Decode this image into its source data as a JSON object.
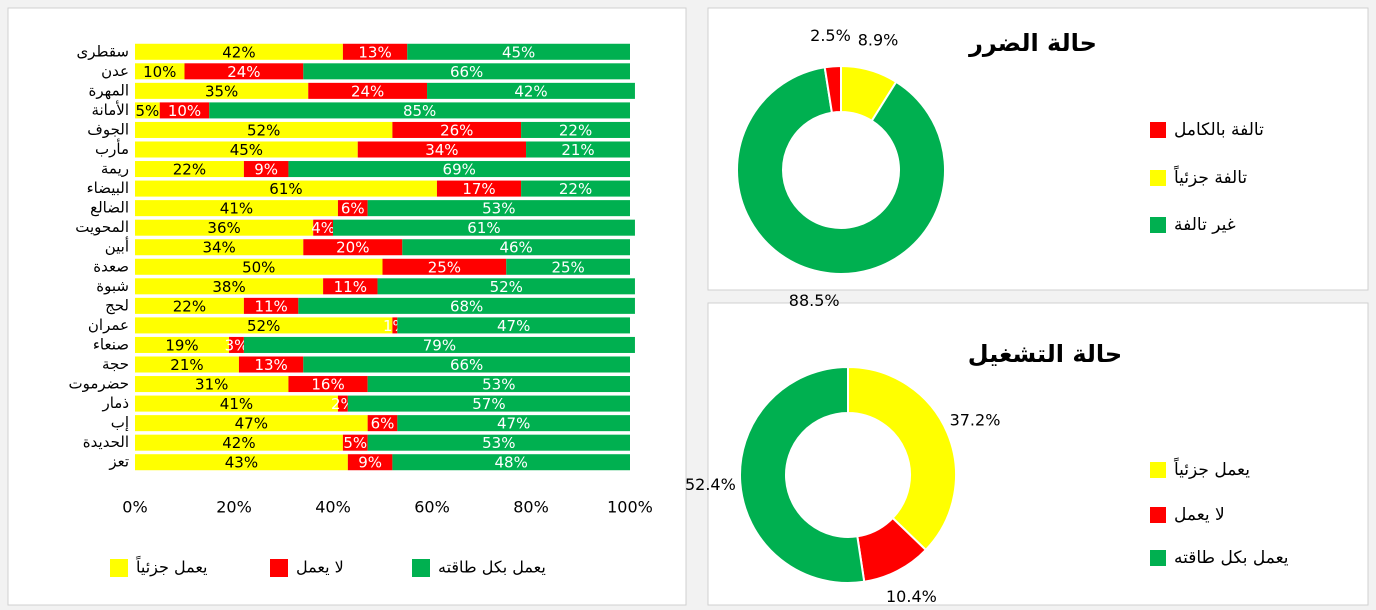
{
  "chart_data": [
    {
      "type": "bar",
      "orientation": "horizontal",
      "stacked": true,
      "categories": [
        "سقطرى",
        "عدن",
        "المهرة",
        "الأمانة",
        "الجوف",
        "مأرب",
        "ريمة",
        "البيضاء",
        "الضالع",
        "المحويت",
        "أبين",
        "صعدة",
        "شبوة",
        "لحج",
        "عمران",
        "صنعاء",
        "حجة",
        "حضرموت",
        "ذمار",
        "إب",
        "الحديدة",
        "تعز"
      ],
      "series": [
        {
          "name": "يعمل جزئياً",
          "color": "#ffff00",
          "label_color": "#000000",
          "values": [
            42,
            10,
            35,
            5,
            52,
            45,
            22,
            61,
            41,
            36,
            34,
            50,
            38,
            22,
            52,
            19,
            21,
            31,
            41,
            47,
            42,
            43
          ],
          "value_labels": [
            "42%",
            "10%",
            "35%",
            "5%",
            "52%",
            "45%",
            "22%",
            "61%",
            "41%",
            "36%",
            "34%",
            "50%",
            "38%",
            "22%",
            "52%",
            "19%",
            "21%",
            "31%",
            "41%",
            "47%",
            "42%",
            "43%"
          ]
        },
        {
          "name": "لا يعمل",
          "color": "#ff0000",
          "label_color": "#ffffff",
          "values": [
            13,
            24,
            24,
            10,
            26,
            34,
            9,
            17,
            6,
            4,
            20,
            25,
            11,
            11,
            1,
            3,
            13,
            16,
            2,
            6,
            5,
            9
          ],
          "value_labels": [
            "13%",
            "24%",
            "24%",
            "10%",
            "26%",
            "34%",
            "9%",
            "17%",
            "6%",
            "4%",
            "20%",
            "25%",
            "11%",
            "11%",
            "1%",
            "3%",
            "13%",
            "16%",
            "2%",
            "6%",
            "5%",
            "9%"
          ]
        },
        {
          "name": "يعمل بكل طاقته",
          "color": "#00b050",
          "label_color": "#ffffff",
          "values": [
            45,
            66,
            42,
            85,
            22,
            21,
            69,
            22,
            53,
            61,
            46,
            25,
            52,
            68,
            47,
            79,
            66,
            53,
            57,
            47,
            53,
            48
          ],
          "value_labels": [
            "45%",
            "66%",
            "42%",
            "85%",
            "22%",
            "21%",
            "69%",
            "22%",
            "53%",
            "61%",
            "46%",
            "25%",
            "52%",
            "68%",
            "47%",
            "79%",
            "66%",
            "53%",
            "57%",
            "47%",
            "53%",
            "48%"
          ]
        }
      ],
      "xlim": [
        0,
        100
      ],
      "xticks": [
        {
          "value": 0,
          "label": "0%"
        },
        {
          "value": 20,
          "label": "20%"
        },
        {
          "value": 40,
          "label": "40%"
        },
        {
          "value": 60,
          "label": "60%"
        },
        {
          "value": 80,
          "label": "80%"
        },
        {
          "value": 100,
          "label": "100%"
        }
      ],
      "legend": "bottom"
    },
    {
      "type": "donut",
      "title": "حالة الضرر",
      "categories": [
        "تالفة بالكامل",
        "تالفة جزئياً",
        "غير تالفة"
      ],
      "colors": [
        "#ff0000",
        "#ffff00",
        "#00b050"
      ],
      "values": [
        2.5,
        8.9,
        88.5
      ],
      "value_labels": [
        "2.5%",
        "8.9%",
        "88.5%"
      ],
      "legend": "right"
    },
    {
      "type": "donut",
      "title": "حالة التشغيل",
      "categories": [
        "يعمل جزئياً",
        "لا يعمل",
        "يعمل بكل طاقته"
      ],
      "colors": [
        "#ffff00",
        "#ff0000",
        "#00b050"
      ],
      "values": [
        37.2,
        10.4,
        52.4
      ],
      "value_labels": [
        "37.2%",
        "10.4%",
        "52.4%"
      ],
      "legend": "right"
    }
  ]
}
